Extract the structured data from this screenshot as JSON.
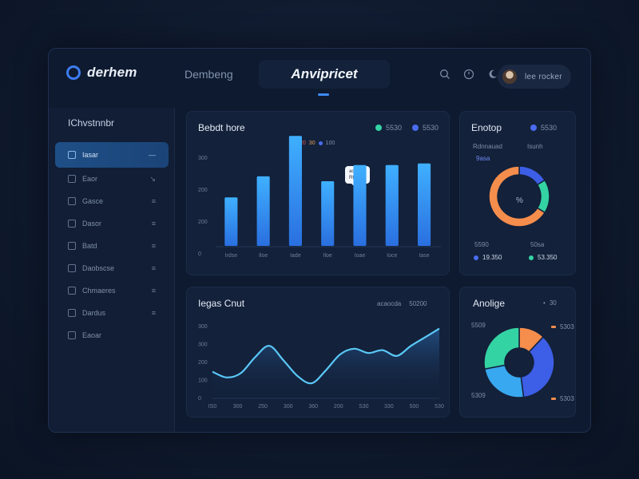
{
  "app": {
    "name": "derhem"
  },
  "nav": {
    "tab1": "Dembeng",
    "tab2": "Anvipricet"
  },
  "profile": {
    "text": "lee  rocker"
  },
  "icons": {
    "search": "search-icon",
    "clock": "clock-icon",
    "moon": "moon-icon"
  },
  "sidebar": {
    "title": "IChvstnnbr",
    "items": [
      {
        "label": "Iasar",
        "active": true
      },
      {
        "label": "Eaor"
      },
      {
        "label": "Gasce"
      },
      {
        "label": "Dasor"
      },
      {
        "label": "Batd"
      },
      {
        "label": "Daobscse"
      },
      {
        "label": "Chmaeres"
      },
      {
        "label": "Dardus"
      },
      {
        "label": "Eaoar"
      }
    ]
  },
  "bar_card": {
    "title": "Bebdt hore",
    "legend": [
      "5530",
      "5530"
    ],
    "mini_legend": [
      "20",
      "30",
      "100"
    ],
    "tooltip": [
      "accaoe",
      "Rtoao d"
    ]
  },
  "pie_card_top": {
    "title": "Enotop",
    "legend": "5530",
    "label_left": "Rdnnauad",
    "label_right": "Isunh",
    "label_left2": "9asa",
    "center": "%",
    "bottom_left_label": "5590",
    "bottom_right_label": "50sa",
    "bottom_left_value": "19.350",
    "bottom_right_value": "53.350"
  },
  "line_card": {
    "title": "Iegas Cnut",
    "legend": [
      "acaocda",
      "50200"
    ]
  },
  "pie_card_bottom": {
    "title": "Anolige",
    "legend": "30",
    "labels": [
      "5509",
      "5303",
      "5309",
      "5303"
    ]
  },
  "chart_data": [
    {
      "type": "bar",
      "categories": [
        "Irdse",
        "Iloe",
        "Iade",
        "Iloe",
        "Ioae",
        "Ioce",
        "Iase"
      ],
      "values": [
        150,
        215,
        340,
        200,
        250,
        250,
        255
      ],
      "ylabels": [
        "300",
        "200",
        "200",
        "0"
      ],
      "ylim": [
        0,
        400
      ]
    },
    {
      "type": "pie",
      "slices": [
        {
          "name": "a",
          "value": 16,
          "color": "#3d5ee6"
        },
        {
          "name": "b",
          "value": 18,
          "color": "#34d3a3"
        },
        {
          "name": "c",
          "value": 66,
          "color": "#f58d4c"
        }
      ]
    },
    {
      "type": "line",
      "x": [
        0,
        1,
        2,
        3,
        4,
        5,
        6,
        7,
        8,
        9,
        10,
        11,
        12,
        13,
        14,
        15,
        16
      ],
      "values": [
        180,
        140,
        170,
        280,
        360,
        260,
        150,
        100,
        190,
        300,
        340,
        310,
        330,
        290,
        360,
        420,
        480
      ],
      "ylabels": [
        "300",
        "300",
        "200",
        "100",
        "0"
      ],
      "xlabels": [
        "IS0",
        "300",
        "250",
        "300",
        "360",
        "200",
        "S30",
        "330",
        "500",
        "530"
      ],
      "ylim": [
        0,
        500
      ]
    },
    {
      "type": "pie",
      "slices": [
        {
          "name": "a",
          "value": 12,
          "color": "#f58d4c"
        },
        {
          "name": "b",
          "value": 36,
          "color": "#3d5ee6"
        },
        {
          "name": "c",
          "value": 24,
          "color": "#38a8f0"
        },
        {
          "name": "d",
          "value": 28,
          "color": "#34d3a3"
        }
      ]
    }
  ]
}
